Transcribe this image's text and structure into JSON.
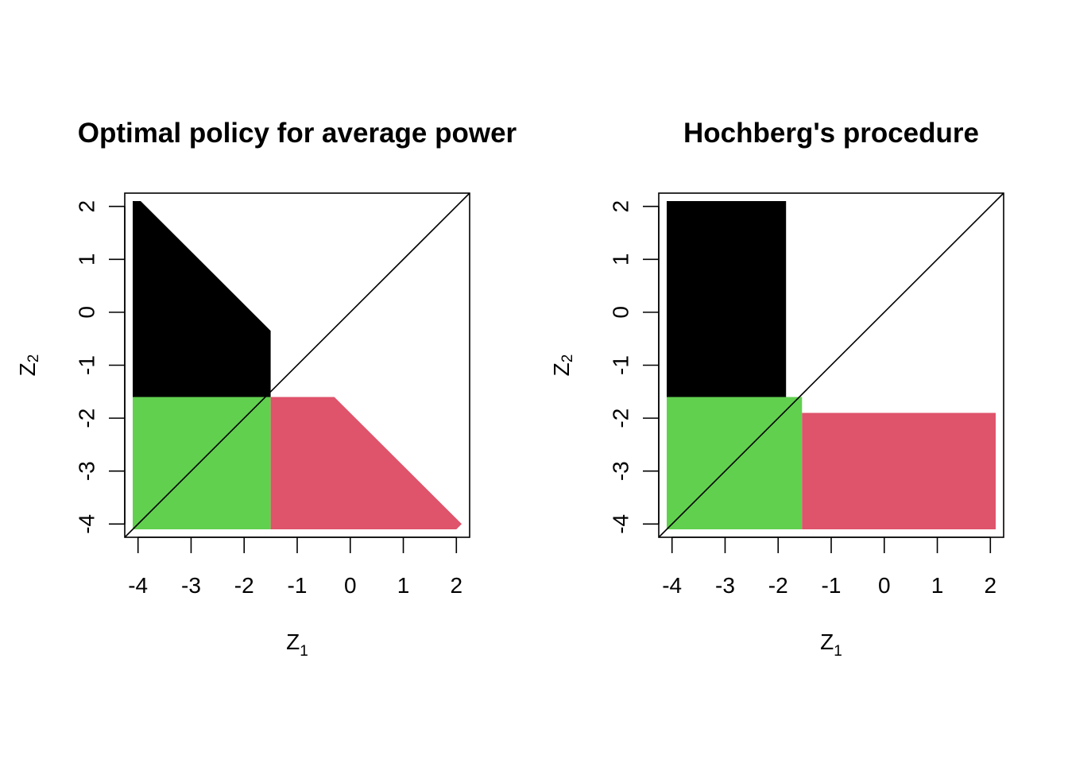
{
  "chart_data": [
    {
      "type": "area",
      "title": "Optimal policy for average power",
      "xlabel": {
        "main": "Z",
        "sub": "1"
      },
      "ylabel": {
        "main": "Z",
        "sub": "2"
      },
      "xlim": [
        -4.25,
        2.25
      ],
      "ylim": [
        -4.25,
        2.25
      ],
      "xticks": [
        "-4",
        "-3",
        "-2",
        "-1",
        "0",
        "1",
        "2"
      ],
      "yticks": [
        "-4",
        "-3",
        "-2",
        "-1",
        "0",
        "1",
        "2"
      ],
      "diagonal": true,
      "regions": [
        {
          "color": "#000000",
          "points": [
            [
              -4.1,
              2.1
            ],
            [
              -3.95,
              2.1
            ],
            [
              -1.5,
              -0.35
            ],
            [
              -1.5,
              -1.6
            ],
            [
              -4.1,
              -1.6
            ]
          ]
        },
        {
          "color": "#61D04F",
          "points": [
            [
              -4.1,
              -1.6
            ],
            [
              -1.5,
              -1.6
            ],
            [
              -1.5,
              -4.1
            ],
            [
              -4.1,
              -4.1
            ]
          ]
        },
        {
          "color": "#DF536B",
          "points": [
            [
              -1.5,
              -1.6
            ],
            [
              -0.3,
              -1.6
            ],
            [
              2.1,
              -4.0
            ],
            [
              2.0,
              -4.1
            ],
            [
              -1.5,
              -4.1
            ]
          ]
        }
      ]
    },
    {
      "type": "area",
      "title": "Hochberg's procedure",
      "xlabel": {
        "main": "Z",
        "sub": "1"
      },
      "ylabel": {
        "main": "Z",
        "sub": "2"
      },
      "xlim": [
        -4.25,
        2.25
      ],
      "ylim": [
        -4.25,
        2.25
      ],
      "xticks": [
        "-4",
        "-3",
        "-2",
        "-1",
        "0",
        "1",
        "2"
      ],
      "yticks": [
        "-4",
        "-3",
        "-2",
        "-1",
        "0",
        "1",
        "2"
      ],
      "diagonal": true,
      "regions": [
        {
          "color": "#000000",
          "points": [
            [
              -4.1,
              2.1
            ],
            [
              -1.85,
              2.1
            ],
            [
              -1.85,
              -1.6
            ],
            [
              -4.1,
              -1.6
            ]
          ]
        },
        {
          "color": "#61D04F",
          "points": [
            [
              -4.1,
              -1.6
            ],
            [
              -1.55,
              -1.6
            ],
            [
              -1.55,
              -4.1
            ],
            [
              -4.1,
              -4.1
            ]
          ]
        },
        {
          "color": "#DF536B",
          "points": [
            [
              -1.55,
              -1.9
            ],
            [
              2.1,
              -1.9
            ],
            [
              2.1,
              -4.1
            ],
            [
              -1.55,
              -4.1
            ]
          ]
        }
      ]
    }
  ]
}
